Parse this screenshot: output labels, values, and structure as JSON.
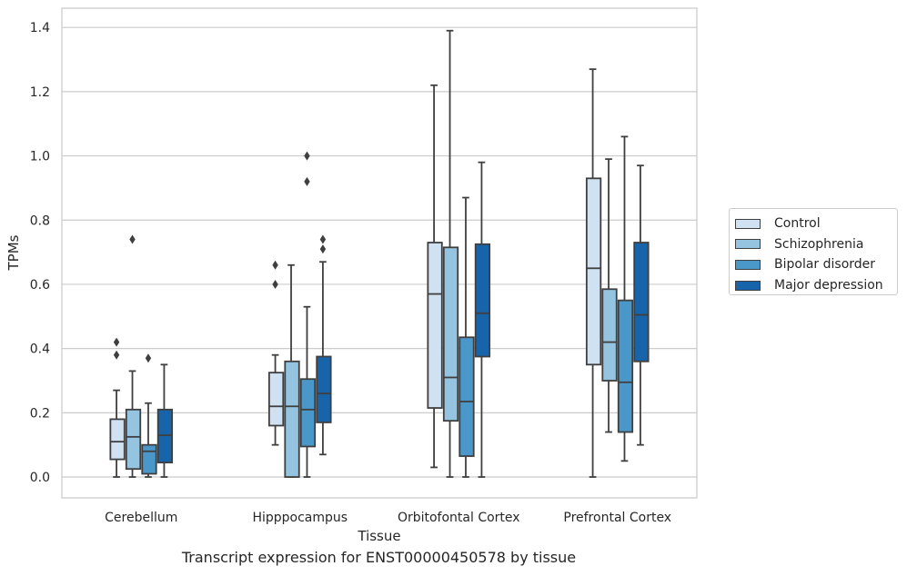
{
  "chart_data": {
    "type": "box",
    "title": "",
    "xlabel": "Tissue",
    "ylabel": "TPMs",
    "caption": "Transcript expression for ENST00000450578 by tissue",
    "ylim": [
      -0.065,
      1.46
    ],
    "yticks": [
      "0.0",
      "0.2",
      "0.4",
      "0.6",
      "0.8",
      "1.0",
      "1.2",
      "1.4"
    ],
    "grid": true,
    "legend_position": "right",
    "categories": [
      "Cerebellum",
      "Hipppocampus",
      "Orbitofontal Cortex",
      "Prefrontal Cortex"
    ],
    "series": [
      {
        "name": "Control",
        "color": "#d0e1f2",
        "boxes": [
          {
            "min": 0.0,
            "q1": 0.055,
            "median": 0.11,
            "q3": 0.18,
            "max": 0.27,
            "outliers": [
              0.38,
              0.42
            ]
          },
          {
            "min": 0.1,
            "q1": 0.16,
            "median": 0.22,
            "q3": 0.325,
            "max": 0.38,
            "outliers": [
              0.6,
              0.66
            ]
          },
          {
            "min": 0.03,
            "q1": 0.215,
            "median": 0.57,
            "q3": 0.73,
            "max": 1.22,
            "outliers": []
          },
          {
            "min": 0.0,
            "q1": 0.35,
            "median": 0.65,
            "q3": 0.93,
            "max": 1.27,
            "outliers": []
          }
        ]
      },
      {
        "name": "Schizophrenia",
        "color": "#94c4df",
        "boxes": [
          {
            "min": 0.0,
            "q1": 0.025,
            "median": 0.125,
            "q3": 0.21,
            "max": 0.33,
            "outliers": [
              0.74
            ]
          },
          {
            "min": 0.0,
            "q1": 0.0,
            "median": 0.22,
            "q3": 0.36,
            "max": 0.66,
            "outliers": []
          },
          {
            "min": 0.0,
            "q1": 0.175,
            "median": 0.31,
            "q3": 0.715,
            "max": 1.39,
            "outliers": []
          },
          {
            "min": 0.14,
            "q1": 0.3,
            "median": 0.42,
            "q3": 0.585,
            "max": 0.99,
            "outliers": []
          }
        ]
      },
      {
        "name": "Bipolar disorder",
        "color": "#4a98c9",
        "boxes": [
          {
            "min": 0.0,
            "q1": 0.01,
            "median": 0.08,
            "q3": 0.1,
            "max": 0.23,
            "outliers": [
              0.37
            ]
          },
          {
            "min": 0.0,
            "q1": 0.095,
            "median": 0.21,
            "q3": 0.305,
            "max": 0.53,
            "outliers": [
              0.92,
              1.0
            ]
          },
          {
            "min": 0.0,
            "q1": 0.065,
            "median": 0.235,
            "q3": 0.435,
            "max": 0.87,
            "outliers": []
          },
          {
            "min": 0.05,
            "q1": 0.14,
            "median": 0.295,
            "q3": 0.55,
            "max": 1.06,
            "outliers": []
          }
        ]
      },
      {
        "name": "Major depression",
        "color": "#1764ab",
        "boxes": [
          {
            "min": 0.0,
            "q1": 0.045,
            "median": 0.13,
            "q3": 0.21,
            "max": 0.35,
            "outliers": []
          },
          {
            "min": 0.07,
            "q1": 0.17,
            "median": 0.26,
            "q3": 0.375,
            "max": 0.67,
            "outliers": [
              0.71,
              0.74
            ]
          },
          {
            "min": 0.0,
            "q1": 0.375,
            "median": 0.51,
            "q3": 0.725,
            "max": 0.98,
            "outliers": []
          },
          {
            "min": 0.1,
            "q1": 0.36,
            "median": 0.505,
            "q3": 0.73,
            "max": 0.97,
            "outliers": []
          }
        ]
      }
    ]
  }
}
